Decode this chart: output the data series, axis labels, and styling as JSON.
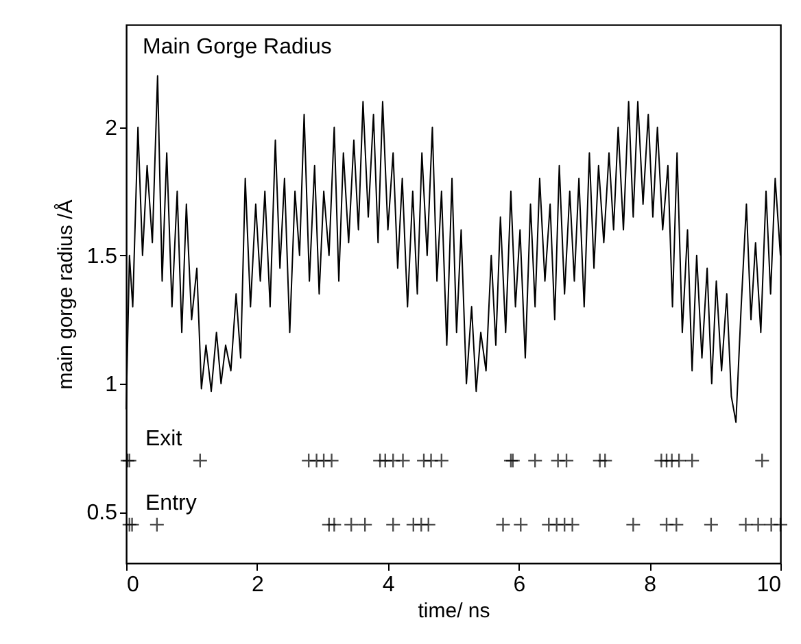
{
  "chart_data": {
    "type": "line",
    "title": "Main Gorge Radius",
    "xlabel": "time/ ns",
    "ylabel": "main gorge radius /Å",
    "xlim": [
      0,
      10
    ],
    "xticks": [
      0,
      2,
      4,
      6,
      8,
      10
    ],
    "ylim": [
      0.3,
      2.4
    ],
    "yticks": [
      0.5,
      1,
      1.5,
      2
    ],
    "grid": false,
    "series": [
      {
        "color": "#000000",
        "line_style": "solid",
        "x": [
          0,
          0.05,
          0.1,
          0.18,
          0.25,
          0.32,
          0.4,
          0.48,
          0.55,
          0.62,
          0.7,
          0.78,
          0.85,
          0.92,
          1.0,
          1.08,
          1.15,
          1.22,
          1.3,
          1.38,
          1.45,
          1.52,
          1.6,
          1.68,
          1.75,
          1.82,
          1.9,
          1.98,
          2.05,
          2.12,
          2.2,
          2.28,
          2.35,
          2.42,
          2.5,
          2.58,
          2.65,
          2.72,
          2.8,
          2.88,
          2.95,
          3.02,
          3.1,
          3.18,
          3.25,
          3.32,
          3.4,
          3.48,
          3.55,
          3.62,
          3.7,
          3.78,
          3.85,
          3.92,
          4.0,
          4.08,
          4.15,
          4.22,
          4.3,
          4.38,
          4.45,
          4.52,
          4.6,
          4.68,
          4.75,
          4.82,
          4.9,
          4.98,
          5.05,
          5.12,
          5.2,
          5.28,
          5.35,
          5.42,
          5.5,
          5.58,
          5.65,
          5.72,
          5.8,
          5.88,
          5.95,
          6.02,
          6.1,
          6.18,
          6.25,
          6.32,
          6.4,
          6.48,
          6.55,
          6.62,
          6.7,
          6.78,
          6.85,
          6.92,
          7.0,
          7.08,
          7.15,
          7.22,
          7.3,
          7.38,
          7.45,
          7.52,
          7.6,
          7.68,
          7.75,
          7.82,
          7.9,
          7.98,
          8.05,
          8.12,
          8.2,
          8.28,
          8.35,
          8.42,
          8.5,
          8.58,
          8.65,
          8.72,
          8.8,
          8.88,
          8.95,
          9.02,
          9.1,
          9.18,
          9.25,
          9.32,
          9.4,
          9.48,
          9.55,
          9.62,
          9.7,
          9.78,
          9.85,
          9.92,
          10.0
        ],
        "values": [
          0.9,
          1.5,
          1.3,
          2.0,
          1.5,
          1.85,
          1.55,
          2.2,
          1.4,
          1.9,
          1.3,
          1.75,
          1.2,
          1.7,
          1.25,
          1.45,
          0.98,
          1.15,
          0.97,
          1.2,
          1.0,
          1.15,
          1.05,
          1.35,
          1.1,
          1.8,
          1.3,
          1.7,
          1.4,
          1.75,
          1.3,
          1.95,
          1.45,
          1.8,
          1.2,
          1.75,
          1.5,
          2.05,
          1.4,
          1.85,
          1.35,
          1.75,
          1.5,
          2.0,
          1.4,
          1.9,
          1.55,
          1.95,
          1.6,
          2.1,
          1.65,
          2.05,
          1.55,
          2.1,
          1.6,
          1.9,
          1.45,
          1.8,
          1.3,
          1.75,
          1.35,
          1.9,
          1.5,
          2.0,
          1.4,
          1.75,
          1.15,
          1.8,
          1.2,
          1.6,
          1.0,
          1.3,
          0.97,
          1.2,
          1.05,
          1.5,
          1.15,
          1.65,
          1.2,
          1.75,
          1.3,
          1.6,
          1.1,
          1.7,
          1.3,
          1.8,
          1.4,
          1.7,
          1.25,
          1.85,
          1.35,
          1.75,
          1.4,
          1.8,
          1.3,
          1.9,
          1.45,
          1.85,
          1.55,
          1.9,
          1.6,
          2.0,
          1.6,
          2.1,
          1.65,
          2.1,
          1.7,
          2.05,
          1.65,
          2.0,
          1.6,
          1.85,
          1.3,
          1.9,
          1.2,
          1.6,
          1.05,
          1.5,
          1.1,
          1.45,
          1.0,
          1.4,
          1.05,
          1.35,
          0.95,
          0.85,
          1.3,
          1.7,
          1.25,
          1.55,
          1.2,
          1.75,
          1.35,
          1.8,
          1.5
        ]
      },
      {
        "type": "scatter",
        "name": "Exit",
        "color": "#000000",
        "marker": "cross",
        "x": [
          0.02,
          0.05,
          1.13,
          2.79,
          2.91,
          3.02,
          3.14,
          3.88,
          3.96,
          4.08,
          4.23,
          4.55,
          4.66,
          4.82,
          5.88,
          5.91,
          6.25,
          6.6,
          6.73,
          7.24,
          7.32,
          8.18,
          8.26,
          8.34,
          8.45,
          8.65,
          9.72
        ],
        "values": [
          0.7,
          0.7,
          0.7,
          0.7,
          0.7,
          0.7,
          0.7,
          0.7,
          0.7,
          0.7,
          0.7,
          0.7,
          0.7,
          0.7,
          0.7,
          0.7,
          0.7,
          0.7,
          0.7,
          0.7,
          0.7,
          0.7,
          0.7,
          0.7,
          0.7,
          0.7,
          0.7
        ]
      },
      {
        "type": "scatter",
        "name": "Entry",
        "color": "#000000",
        "marker": "cross",
        "x": [
          0.05,
          0.09,
          0.47,
          3.1,
          3.18,
          3.44,
          3.65,
          4.08,
          4.39,
          4.51,
          4.62,
          5.76,
          6.03,
          6.46,
          6.58,
          6.7,
          6.82,
          7.75,
          8.26,
          8.41,
          8.94,
          9.47,
          9.66,
          9.86,
          10.0
        ],
        "values": [
          0.45,
          0.45,
          0.45,
          0.45,
          0.45,
          0.45,
          0.45,
          0.45,
          0.45,
          0.45,
          0.45,
          0.45,
          0.45,
          0.45,
          0.45,
          0.45,
          0.45,
          0.45,
          0.45,
          0.45,
          0.45,
          0.45,
          0.45,
          0.45,
          0.45
        ]
      }
    ]
  }
}
